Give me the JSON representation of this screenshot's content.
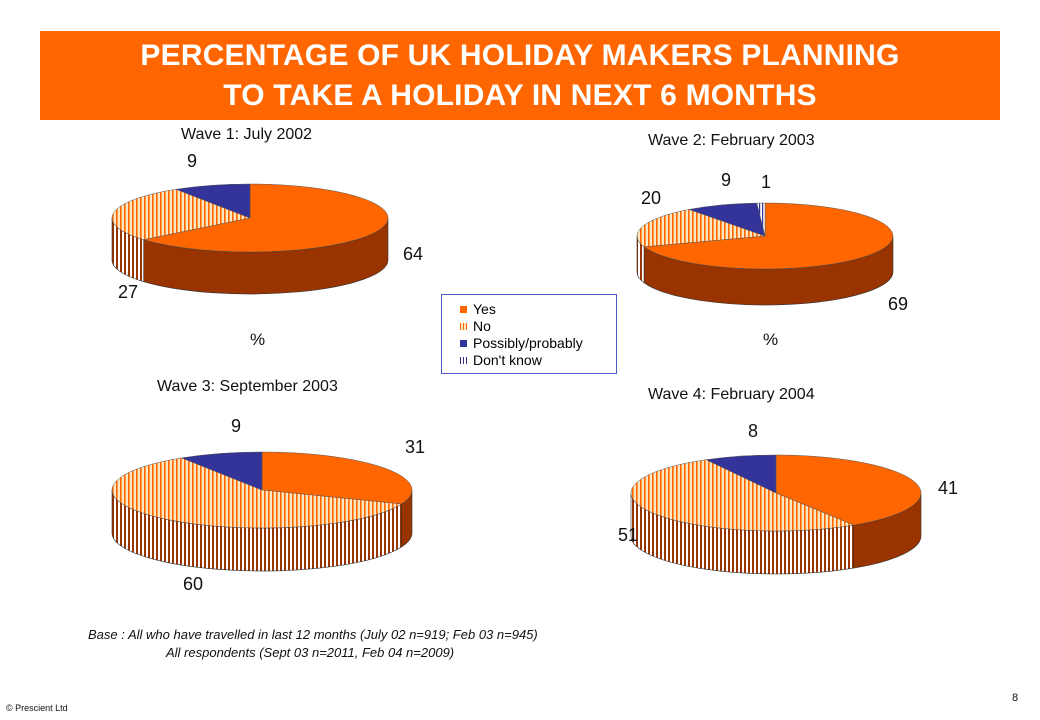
{
  "title": {
    "line1": "PERCENTAGE OF UK HOLIDAY MAKERS PLANNING",
    "line2": "TO TAKE A HOLIDAY IN NEXT 6 MONTHS"
  },
  "colors": {
    "banner": "#ff6600",
    "yes": "#ff6600",
    "yes_side": "#993300",
    "no_stripe": "#ff6600",
    "no_bg": "#ffe8c0",
    "no_side_bg": "#ffffff",
    "possibly": "#333399",
    "possibly_side": "#1a1a66",
    "dont_know": "#333399"
  },
  "legend": {
    "items": [
      "Yes",
      "No",
      "Possibly/probably",
      "Don't know"
    ]
  },
  "percent_symbol": "%",
  "chart_data": [
    {
      "type": "pie",
      "title": "Wave 1: July 2002",
      "categories": [
        "Yes",
        "No",
        "Possibly/probably",
        "Don't know"
      ],
      "values": [
        64,
        27,
        9,
        0
      ],
      "labels": [
        "64",
        "27",
        "9",
        ""
      ],
      "unit": "%"
    },
    {
      "type": "pie",
      "title": "Wave 2: February 2003",
      "categories": [
        "Yes",
        "No",
        "Possibly/probably",
        "Don't know"
      ],
      "values": [
        69,
        20,
        9,
        1
      ],
      "labels": [
        "69",
        "20",
        "9",
        "1"
      ],
      "unit": "%"
    },
    {
      "type": "pie",
      "title": "Wave 3: September 2003",
      "categories": [
        "Yes",
        "No",
        "Possibly/probably",
        "Don't know"
      ],
      "values": [
        31,
        60,
        9,
        0
      ],
      "labels": [
        "31",
        "60",
        "9",
        ""
      ],
      "unit": ""
    },
    {
      "type": "pie",
      "title": "Wave 4: February 2004",
      "categories": [
        "Yes",
        "No",
        "Possibly/probably",
        "Don't know"
      ],
      "values": [
        41,
        51,
        8,
        0
      ],
      "labels": [
        "41",
        "51",
        "8",
        ""
      ],
      "unit": ""
    }
  ],
  "base_note": {
    "line1": "Base : All who have travelled in last 12 months (July 02 n=919; Feb 03 n=945)",
    "line2": "All respondents (Sept 03 n=2011, Feb 04 n=2009)"
  },
  "footer": {
    "copyright": "© Prescient Ltd",
    "page_number": "8"
  }
}
